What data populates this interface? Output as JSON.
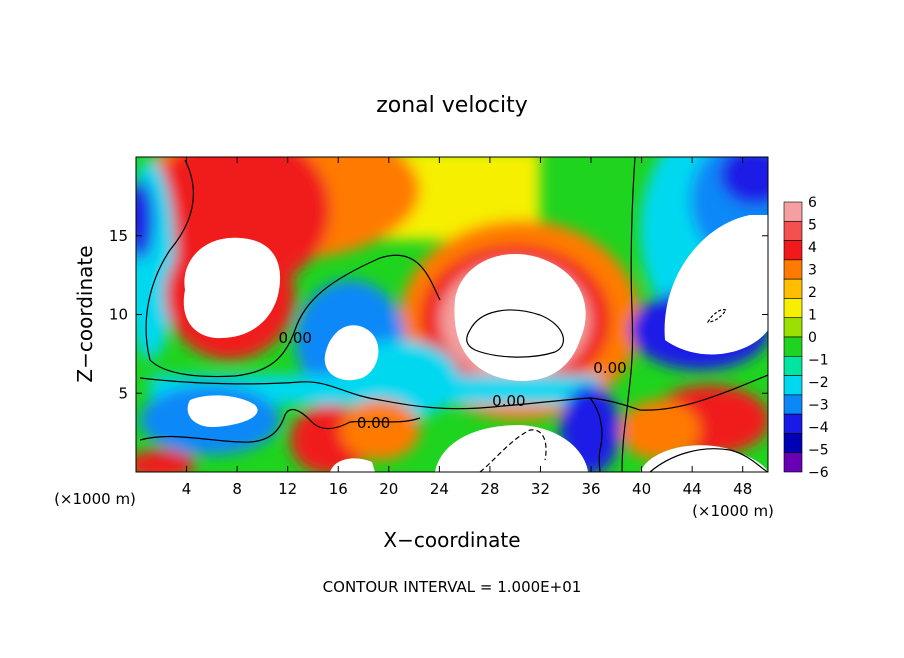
{
  "chart_data": {
    "type": "heatmap",
    "title": "zonal velocity",
    "xlabel": "X−coordinate",
    "ylabel": "Z−coordinate",
    "x_unit_left": "(×1000 m)",
    "x_unit_right": "(×1000 m)",
    "xlim": [
      0,
      50
    ],
    "ylim": [
      0,
      20
    ],
    "xticks": [
      4,
      8,
      12,
      16,
      20,
      24,
      28,
      32,
      36,
      40,
      44,
      48
    ],
    "yticks": [
      5,
      10,
      15
    ],
    "colorbar": {
      "levels": [
        6,
        5,
        4,
        3,
        2,
        1,
        0,
        -1,
        -2,
        -3,
        -4,
        -5,
        -6
      ],
      "labels": [
        "6",
        "5",
        "4",
        "3",
        "2",
        "1",
        "0",
        "−1",
        "−2",
        "−3",
        "−4",
        "−5",
        "−6"
      ],
      "colors": [
        "#f4a0a0",
        "#f45050",
        "#f01a1a",
        "#ff7a00",
        "#ffbf00",
        "#f6f000",
        "#9be000",
        "#1ed41e",
        "#00e6a0",
        "#00d8f0",
        "#0a88f8",
        "#1a1ae6",
        "#0000b4",
        "#6a00b4"
      ]
    },
    "contour_labels": [
      {
        "text": "0.00",
        "x": 12.6,
        "z": 8.2
      },
      {
        "text": "0.00",
        "x": 18.8,
        "z": 2.8
      },
      {
        "text": "0.00",
        "x": 29.5,
        "z": 4.2
      },
      {
        "text": "0.00",
        "x": 37.5,
        "z": 6.3
      }
    ],
    "footer": "CONTOUR INTERVAL = 1.000E+01"
  }
}
